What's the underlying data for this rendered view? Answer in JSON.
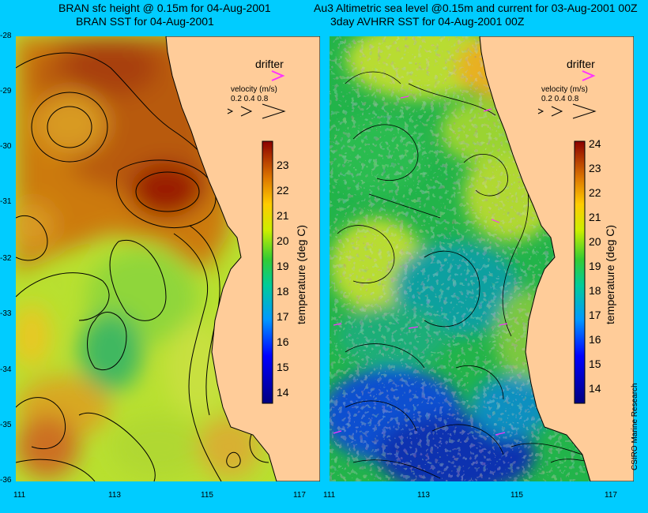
{
  "left_panel": {
    "title_line1": "BRAN sfc height @ 0.15m for 04-Aug-2001",
    "title_line2": "BRAN SST for 04-Aug-2001",
    "legend": {
      "drifter_label": "drifter",
      "velocity_label": "velocity (m/s)",
      "velocity_values": "0.2 0.4 0.8"
    },
    "colorbar": {
      "label": "temperature (deg C)",
      "ticks": [
        "23",
        "22",
        "21",
        "20",
        "19",
        "18",
        "17",
        "16",
        "15",
        "14"
      ]
    }
  },
  "right_panel": {
    "title_line1": "Au3 Altimetric sea level  @0.15m and current for 03-Aug-2001 00Z",
    "title_line2": "3day AVHRR SST for 04-Aug-2001 00Z",
    "legend": {
      "drifter_label": "drifter",
      "velocity_label": "velocity (m/s)",
      "velocity_values": "0.2 0.4 0.8"
    },
    "colorbar": {
      "label": "temperature (deg C)",
      "ticks": [
        "24",
        "23",
        "22",
        "21",
        "20",
        "19",
        "18",
        "17",
        "16",
        "15",
        "14"
      ]
    }
  },
  "axes": {
    "lat_ticks": [
      "-28",
      "-29",
      "-30",
      "-31",
      "-32",
      "-33",
      "-34",
      "-35",
      "-36"
    ],
    "lon_ticks": [
      "111",
      "113",
      "115",
      "117"
    ]
  },
  "credit": "CSIRO Marine Research",
  "colors": {
    "background": "#00ccff",
    "land": "#ffcc99",
    "drifter": "#ff33ff"
  }
}
